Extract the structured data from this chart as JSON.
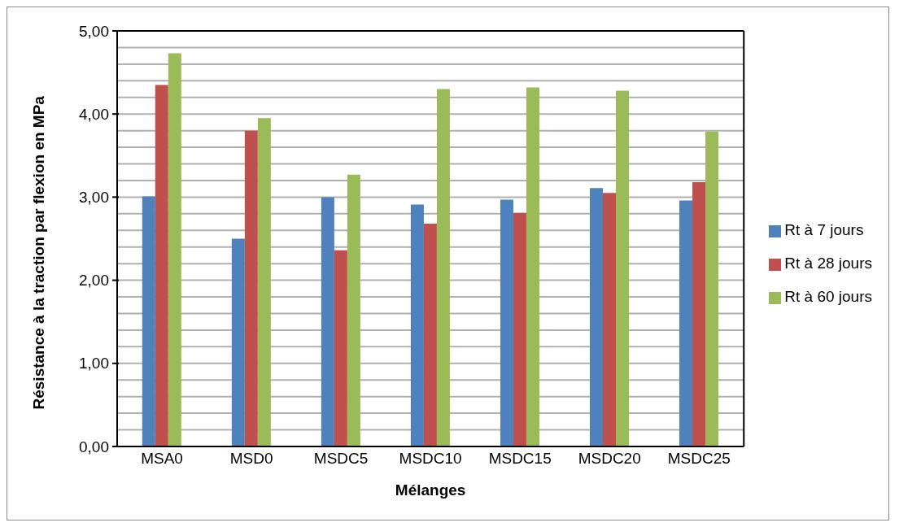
{
  "chart_data": {
    "type": "bar",
    "xlabel": "Mélanges",
    "ylabel": "Résistance à la traction par flexion en MPa",
    "categories": [
      "MSA0",
      "MSD0",
      "MSDC5",
      "MSDC10",
      "MSDC15",
      "MSDC20",
      "MSDC25"
    ],
    "series": [
      {
        "name": "Rt à 7 jours",
        "color": "#4f81bd",
        "values": [
          3.01,
          2.5,
          3.0,
          2.91,
          2.97,
          3.11,
          2.96
        ]
      },
      {
        "name": "Rt à 28 jours",
        "color": "#c0504d",
        "values": [
          4.35,
          3.8,
          2.36,
          2.68,
          2.81,
          3.05,
          3.18
        ]
      },
      {
        "name": "Rt à 60 jours",
        "color": "#9bbb59",
        "values": [
          4.73,
          3.95,
          3.27,
          4.3,
          4.32,
          4.28,
          3.79
        ]
      }
    ],
    "ylim": [
      0,
      5
    ],
    "yticks": [
      {
        "value": 0,
        "label": "0,00"
      },
      {
        "value": 0.2,
        "label": null
      },
      {
        "value": 0.4,
        "label": null
      },
      {
        "value": 0.6,
        "label": null
      },
      {
        "value": 0.8,
        "label": null
      },
      {
        "value": 1,
        "label": "1,00"
      },
      {
        "value": 1.2,
        "label": null
      },
      {
        "value": 1.4,
        "label": null
      },
      {
        "value": 1.6,
        "label": null
      },
      {
        "value": 1.8,
        "label": null
      },
      {
        "value": 2,
        "label": "2,00"
      },
      {
        "value": 2.2,
        "label": null
      },
      {
        "value": 2.4,
        "label": null
      },
      {
        "value": 2.6,
        "label": null
      },
      {
        "value": 2.8,
        "label": null
      },
      {
        "value": 3,
        "label": "3,00"
      },
      {
        "value": 3.2,
        "label": null
      },
      {
        "value": 3.4,
        "label": null
      },
      {
        "value": 3.6,
        "label": null
      },
      {
        "value": 3.8,
        "label": null
      },
      {
        "value": 4,
        "label": "4,00"
      },
      {
        "value": 4.2,
        "label": null
      },
      {
        "value": 4.4,
        "label": null
      },
      {
        "value": 4.6,
        "label": null
      },
      {
        "value": 4.8,
        "label": null
      },
      {
        "value": 5,
        "label": "5,00"
      }
    ],
    "grid": "y",
    "legend": "right"
  }
}
